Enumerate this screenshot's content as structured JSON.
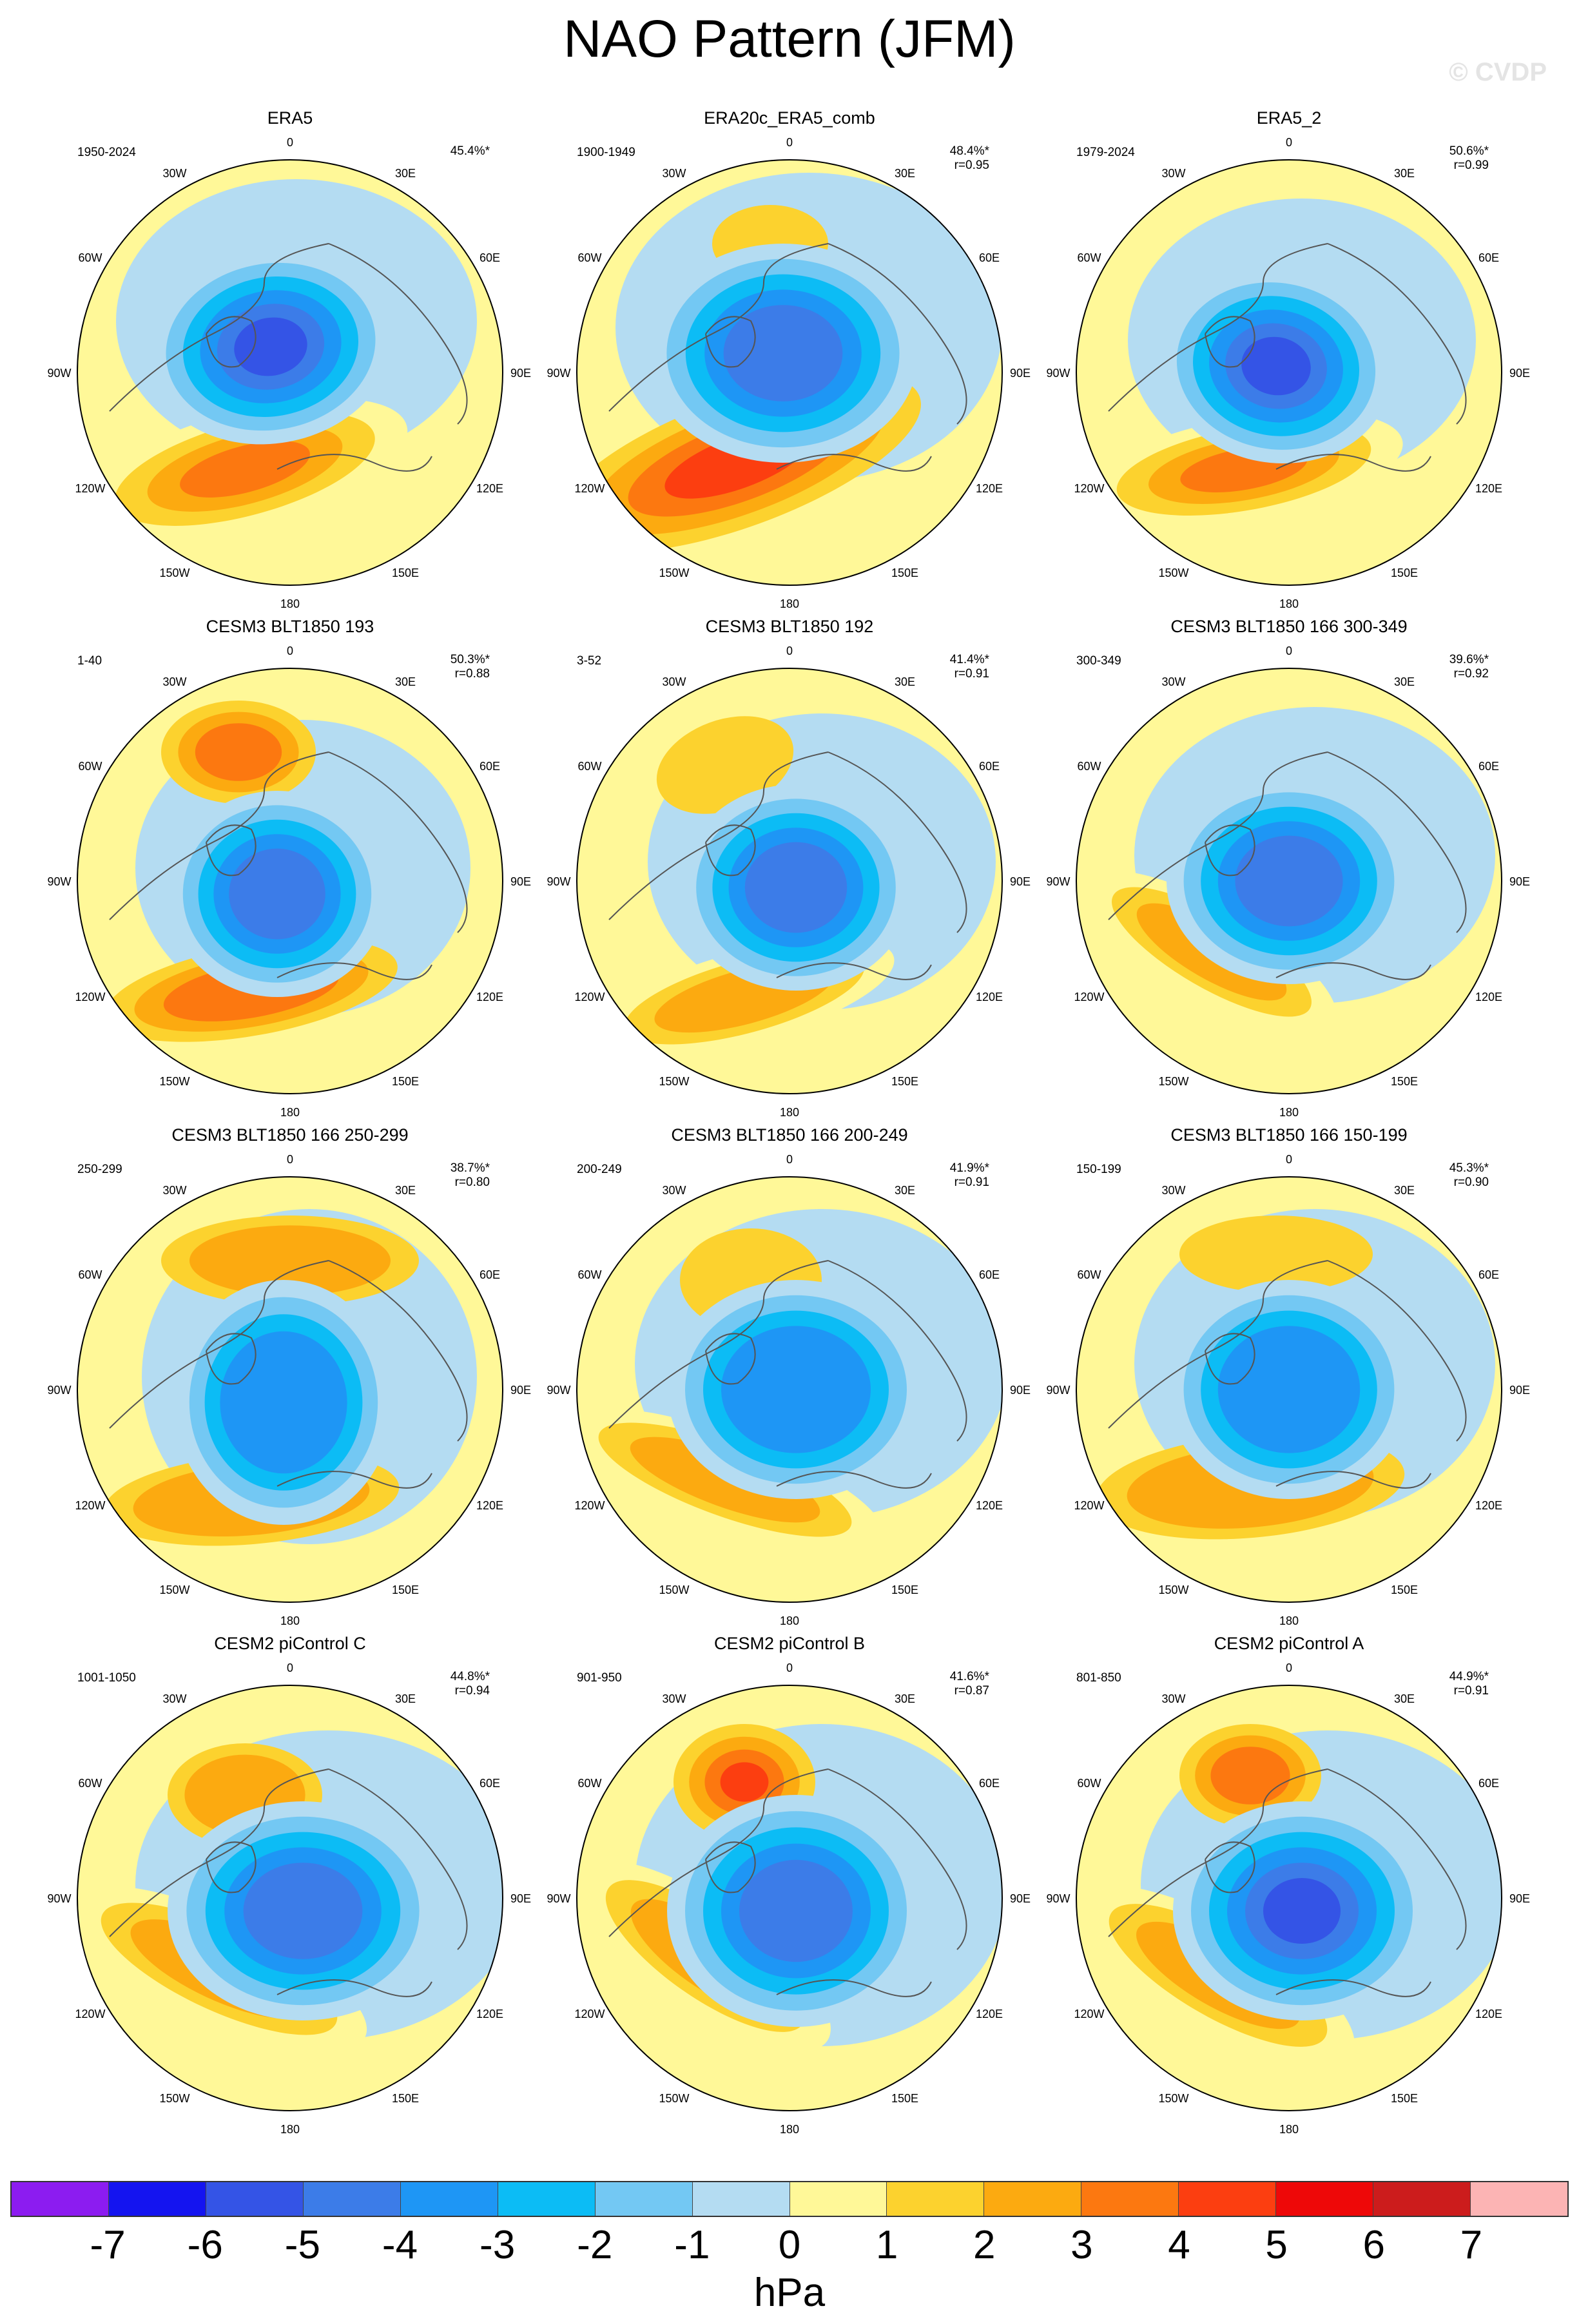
{
  "title": "NAO Pattern (JFM)",
  "watermark": "© CVDP",
  "units": "hPa",
  "lon_labels": [
    "180",
    "150E",
    "120E",
    "90E",
    "60E",
    "30E",
    "0",
    "30W",
    "60W",
    "90W",
    "120W",
    "150W"
  ],
  "colorbar": {
    "colors": [
      "#8c1cf0",
      "#1414f0",
      "#3454e6",
      "#3c7ce8",
      "#1e96f5",
      "#0cbcf5",
      "#73c8f3",
      "#b4dcf2",
      "#fff898",
      "#fcd22e",
      "#fcaa10",
      "#fc7810",
      "#fc3e10",
      "#ee0808",
      "#cc1c1c",
      "#fcb4b4"
    ],
    "ticks": [
      "-7",
      "-6",
      "-5",
      "-4",
      "-3",
      "-2",
      "-1",
      "0",
      "1",
      "2",
      "3",
      "4",
      "5",
      "6",
      "7"
    ]
  },
  "panels": [
    {
      "title": "ERA5",
      "years": "1950-2024",
      "pct": "45.4%*",
      "corr": ""
    },
    {
      "title": "ERA20c_ERA5_comb",
      "years": "1900-1949",
      "pct": "48.4%*",
      "corr": "r=0.95"
    },
    {
      "title": "ERA5_2",
      "years": "1979-2024",
      "pct": "50.6%*",
      "corr": "r=0.99"
    },
    {
      "title": "CESM3 BLT1850 193",
      "years": "1-40",
      "pct": "50.3%*",
      "corr": "r=0.88"
    },
    {
      "title": "CESM3 BLT1850 192",
      "years": "3-52",
      "pct": "41.4%*",
      "corr": "r=0.91"
    },
    {
      "title": "CESM3 BLT1850 166 300-349",
      "years": "300-349",
      "pct": "39.6%*",
      "corr": "r=0.92"
    },
    {
      "title": "CESM3 BLT1850 166 250-299",
      "years": "250-299",
      "pct": "38.7%*",
      "corr": "r=0.80"
    },
    {
      "title": "CESM3 BLT1850 166 200-249",
      "years": "200-249",
      "pct": "41.9%*",
      "corr": "r=0.91"
    },
    {
      "title": "CESM3 BLT1850 166 150-199",
      "years": "150-199",
      "pct": "45.3%*",
      "corr": "r=0.90"
    },
    {
      "title": "CESM2 piControl C",
      "years": "1001-1050",
      "pct": "44.8%*",
      "corr": "r=0.94"
    },
    {
      "title": "CESM2 piControl B",
      "years": "901-950",
      "pct": "41.6%*",
      "corr": "r=0.87"
    },
    {
      "title": "CESM2 piControl A",
      "years": "801-850",
      "pct": "44.9%*",
      "corr": "r=0.91"
    }
  ]
}
